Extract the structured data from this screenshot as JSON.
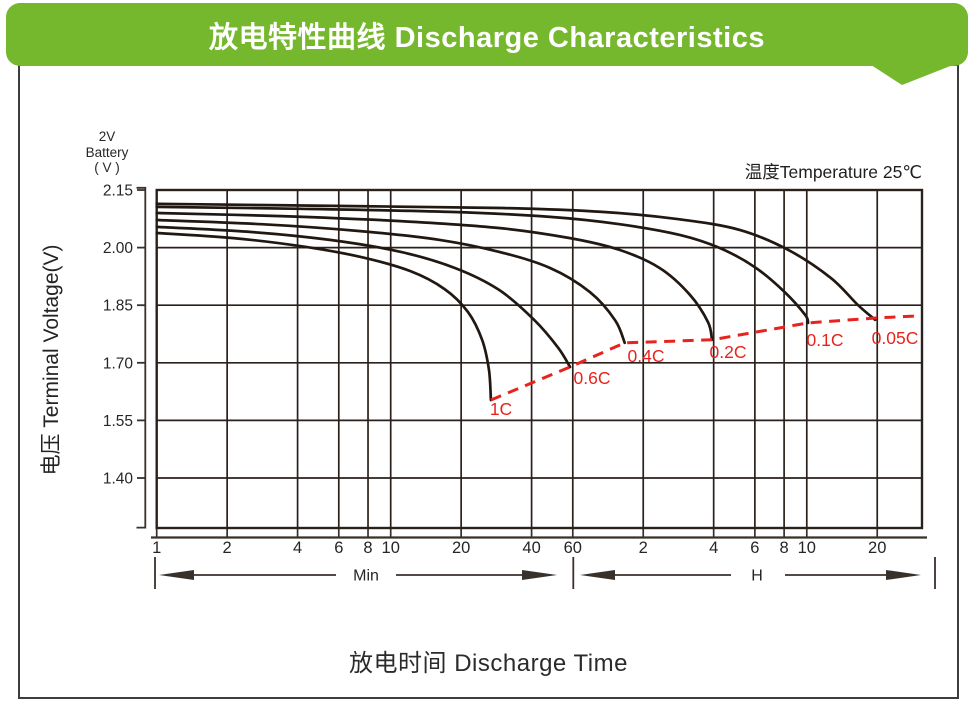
{
  "header": {
    "title": "放电特性曲线  Discharge Characteristics",
    "bg_color": "#76b82d",
    "text_color": "#ffffff"
  },
  "page": {
    "bg_color": "#ffffff",
    "frame_color": "#3d3d3d"
  },
  "chart_data": {
    "type": "line",
    "title": "放电特性曲线 Discharge Characteristics",
    "xlabel": "放电时间  Discharge Time",
    "ylabel": "电压 Terminal Voltage(V)",
    "battery_label": {
      "line1": "2V",
      "line2": "Battery",
      "line3": "( V )"
    },
    "note": "温度Temperature 25℃",
    "x_scale": "log (time in minutes)",
    "x_unit_segments": [
      {
        "label": "Min",
        "ticks": [
          1,
          2,
          4,
          6,
          8,
          10,
          20,
          40,
          60
        ]
      },
      {
        "label": "H",
        "ticks": [
          2,
          4,
          6,
          8,
          10,
          20
        ]
      }
    ],
    "y_ticks": [
      "2.15",
      "2.00",
      "1.85",
      "1.70",
      "1.55",
      "1.40"
    ],
    "y_axis_range": [
      1.27,
      2.15
    ],
    "grid": true,
    "legend_position": "labels on curves",
    "colors": {
      "curve": "#211812",
      "grid": "#2a211c",
      "dashed": "#e8231e",
      "axis": "#38302b",
      "text": "#262626"
    },
    "series": [
      {
        "name": "1C",
        "label_pos": [
          501,
          409
        ],
        "points": [
          [
            1,
            2.038
          ],
          [
            2.1,
            2.025
          ],
          [
            4.1,
            2.004
          ],
          [
            7.4,
            1.976
          ],
          [
            12.1,
            1.939
          ],
          [
            17,
            1.892
          ],
          [
            21.4,
            1.832
          ],
          [
            24.6,
            1.759
          ],
          [
            26.3,
            1.681
          ],
          [
            26.8,
            1.603
          ]
        ]
      },
      {
        "name": "0.6C",
        "label_pos": [
          592,
          378
        ],
        "points": [
          [
            1,
            2.054
          ],
          [
            2.5,
            2.041
          ],
          [
            5.5,
            2.02
          ],
          [
            11,
            1.989
          ],
          [
            18.8,
            1.947
          ],
          [
            29,
            1.89
          ],
          [
            41,
            1.812
          ],
          [
            52,
            1.739
          ],
          [
            58.4,
            1.689
          ]
        ]
      },
      {
        "name": "0.4C",
        "label_pos": [
          646,
          356
        ],
        "points": [
          [
            1,
            2.072
          ],
          [
            2.8,
            2.061
          ],
          [
            7.4,
            2.043
          ],
          [
            16.2,
            2.02
          ],
          [
            29,
            1.989
          ],
          [
            48,
            1.947
          ],
          [
            71,
            1.884
          ],
          [
            91,
            1.811
          ],
          [
            100,
            1.752
          ]
        ]
      },
      {
        "name": "0.2C",
        "label_pos": [
          728,
          352
        ],
        "points": [
          [
            1,
            2.09
          ],
          [
            3.4,
            2.082
          ],
          [
            11,
            2.069
          ],
          [
            29,
            2.051
          ],
          [
            58,
            2.025
          ],
          [
            95,
            1.994
          ],
          [
            141,
            1.947
          ],
          [
            190,
            1.877
          ],
          [
            227,
            1.806
          ],
          [
            236,
            1.76
          ]
        ]
      },
      {
        "name": "0.1C",
        "label_pos": [
          825,
          340
        ],
        "points": [
          [
            1,
            2.106
          ],
          [
            4.1,
            2.101
          ],
          [
            17.9,
            2.093
          ],
          [
            48,
            2.08
          ],
          [
            95,
            2.061
          ],
          [
            172,
            2.033
          ],
          [
            255,
            1.999
          ],
          [
            360,
            1.949
          ],
          [
            483,
            1.884
          ],
          [
            590,
            1.825
          ],
          [
            608,
            1.804
          ]
        ]
      },
      {
        "name": "0.05C",
        "label_pos": [
          895,
          338
        ],
        "points": [
          [
            1,
            2.114
          ],
          [
            7,
            2.108
          ],
          [
            30,
            2.103
          ],
          [
            80,
            2.093
          ],
          [
            170,
            2.074
          ],
          [
            310,
            2.046
          ],
          [
            500,
            1.994
          ],
          [
            760,
            1.921
          ],
          [
            990,
            1.851
          ],
          [
            1175,
            1.812
          ]
        ]
      }
    ],
    "cutoff_line": {
      "style": "dashed",
      "color": "#e8231e",
      "points": [
        [
          26.8,
          1.603
        ],
        [
          58.4,
          1.689
        ],
        [
          100,
          1.752
        ],
        [
          236,
          1.76
        ],
        [
          608,
          1.804
        ],
        [
          1199,
          1.817
        ],
        [
          1760,
          1.822
        ]
      ]
    }
  }
}
